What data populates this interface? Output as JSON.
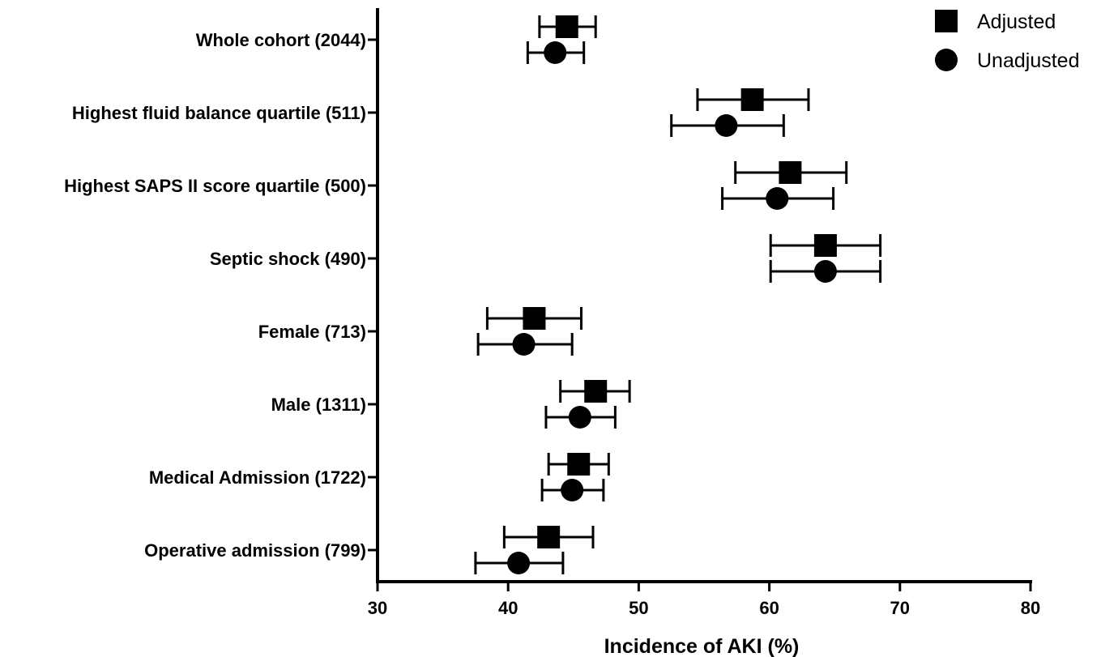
{
  "chart_data": {
    "type": "forest",
    "xlabel": "Incidence of AKI (%)",
    "xlim": [
      30,
      80
    ],
    "xticks": [
      30,
      40,
      50,
      60,
      70,
      80
    ],
    "categories": [
      "Whole cohort (2044)",
      "Highest fluid balance quartile (511)",
      "Highest SAPS II score quartile (500)",
      "Septic shock (490)",
      "Female (713)",
      "Male (1311)",
      "Medical Admission (1722)",
      "Operative admission (799)"
    ],
    "legend": {
      "position": "top-right"
    },
    "series": [
      {
        "name": "Adjusted",
        "marker": "square",
        "values": [
          44.5,
          58.7,
          61.6,
          64.3,
          42.0,
          46.7,
          45.4,
          43.1
        ],
        "ci_low": [
          42.4,
          54.5,
          57.4,
          60.1,
          38.4,
          44.0,
          43.1,
          39.7
        ],
        "ci_high": [
          46.7,
          63.0,
          65.9,
          68.5,
          45.6,
          49.3,
          47.7,
          46.5
        ]
      },
      {
        "name": "Unadjusted",
        "marker": "circle",
        "values": [
          43.6,
          56.7,
          60.6,
          64.3,
          41.2,
          45.5,
          44.9,
          40.8
        ],
        "ci_low": [
          41.5,
          52.5,
          56.4,
          60.1,
          37.7,
          42.9,
          42.6,
          37.5
        ],
        "ci_high": [
          45.8,
          61.1,
          64.9,
          68.5,
          44.9,
          48.2,
          47.3,
          44.2
        ]
      }
    ]
  }
}
